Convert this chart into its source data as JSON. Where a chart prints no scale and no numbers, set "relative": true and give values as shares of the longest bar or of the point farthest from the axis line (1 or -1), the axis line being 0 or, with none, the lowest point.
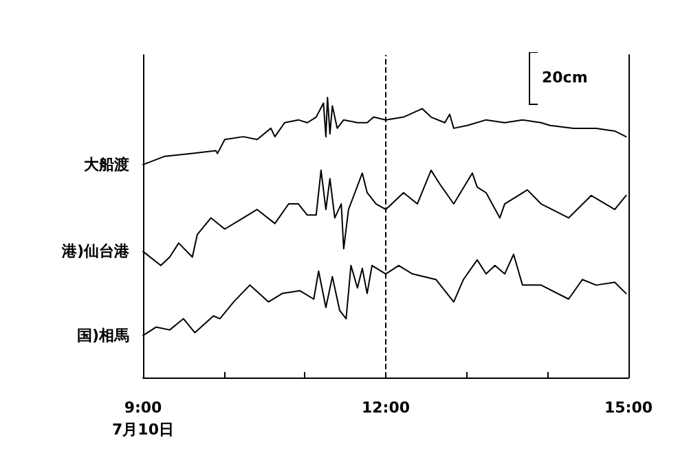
{
  "chart_data": {
    "type": "line",
    "relative": true,
    "legend": false,
    "grid": false,
    "marker": "none",
    "line_style": "solid",
    "xlim": [
      9,
      15
    ],
    "xticks": [
      {
        "value": 9,
        "label": "9:00\n7月10日"
      },
      {
        "value": 10,
        "label": null
      },
      {
        "value": 11,
        "label": null
      },
      {
        "value": 12,
        "label": "12:00"
      },
      {
        "value": 13,
        "label": null
      },
      {
        "value": 14,
        "label": null
      },
      {
        "value": 15,
        "label": "15:00"
      }
    ],
    "ref_lines": [
      {
        "axis": "x",
        "value": 12,
        "label": null,
        "color": "#000000",
        "line_style": "dashed"
      }
    ],
    "annotations": [
      "20cm"
    ],
    "series": [
      {
        "name": "大船渡",
        "color": "#000000",
        "x": [
          9.0,
          9.27,
          9.61,
          9.9,
          9.92,
          10.01,
          10.24,
          10.41,
          10.58,
          10.63,
          10.75,
          10.92,
          11.03,
          11.14,
          11.23,
          11.26,
          11.28,
          11.31,
          11.34,
          11.4,
          11.48,
          11.65,
          11.77,
          11.85,
          12.0,
          12.22,
          12.45,
          12.56,
          12.73,
          12.79,
          12.84,
          13.01,
          13.24,
          13.47,
          13.69,
          13.92,
          14.03,
          14.32,
          14.6,
          14.83,
          14.97
        ],
        "values": [
          0.76,
          0.79,
          0.8,
          0.81,
          0.8,
          0.85,
          0.86,
          0.85,
          0.89,
          0.86,
          0.91,
          0.92,
          0.91,
          0.93,
          0.98,
          0.86,
          1.0,
          0.87,
          0.97,
          0.89,
          0.92,
          0.91,
          0.91,
          0.93,
          0.92,
          0.93,
          0.96,
          0.93,
          0.91,
          0.94,
          0.89,
          0.9,
          0.92,
          0.91,
          0.92,
          0.91,
          0.9,
          0.89,
          0.89,
          0.88,
          0.86
        ]
      },
      {
        "name": "港)仙台港",
        "color": "#000000",
        "x": [
          9.0,
          9.22,
          9.33,
          9.44,
          9.61,
          9.67,
          9.84,
          10.01,
          10.24,
          10.41,
          10.63,
          10.8,
          10.92,
          11.03,
          11.14,
          11.2,
          11.26,
          11.31,
          11.37,
          11.45,
          11.48,
          11.54,
          11.71,
          11.77,
          11.88,
          12.0,
          12.22,
          12.39,
          12.56,
          12.67,
          12.84,
          13.07,
          13.13,
          13.24,
          13.41,
          13.47,
          13.75,
          13.92,
          14.26,
          14.54,
          14.83,
          14.97
        ],
        "values": [
          0.45,
          0.4,
          0.43,
          0.48,
          0.43,
          0.51,
          0.57,
          0.53,
          0.57,
          0.6,
          0.55,
          0.62,
          0.62,
          0.58,
          0.58,
          0.74,
          0.6,
          0.71,
          0.57,
          0.62,
          0.46,
          0.6,
          0.73,
          0.66,
          0.62,
          0.6,
          0.66,
          0.62,
          0.74,
          0.69,
          0.62,
          0.73,
          0.68,
          0.66,
          0.57,
          0.62,
          0.67,
          0.62,
          0.57,
          0.65,
          0.6,
          0.65
        ]
      },
      {
        "name": "国)相馬",
        "color": "#000000",
        "x": [
          9.0,
          9.16,
          9.33,
          9.5,
          9.64,
          9.87,
          9.95,
          10.12,
          10.32,
          10.55,
          10.72,
          10.94,
          11.11,
          11.17,
          11.26,
          11.34,
          11.43,
          11.51,
          11.57,
          11.65,
          11.71,
          11.77,
          11.83,
          12.0,
          12.16,
          12.33,
          12.62,
          12.84,
          12.96,
          13.13,
          13.24,
          13.35,
          13.47,
          13.58,
          13.69,
          13.92,
          14.26,
          14.43,
          14.6,
          14.83,
          14.97
        ],
        "values": [
          0.15,
          0.18,
          0.17,
          0.21,
          0.16,
          0.22,
          0.21,
          0.27,
          0.33,
          0.27,
          0.3,
          0.31,
          0.28,
          0.38,
          0.25,
          0.36,
          0.24,
          0.21,
          0.4,
          0.32,
          0.39,
          0.3,
          0.4,
          0.37,
          0.4,
          0.37,
          0.35,
          0.27,
          0.35,
          0.42,
          0.37,
          0.4,
          0.37,
          0.44,
          0.33,
          0.33,
          0.28,
          0.35,
          0.33,
          0.34,
          0.3
        ]
      }
    ]
  }
}
